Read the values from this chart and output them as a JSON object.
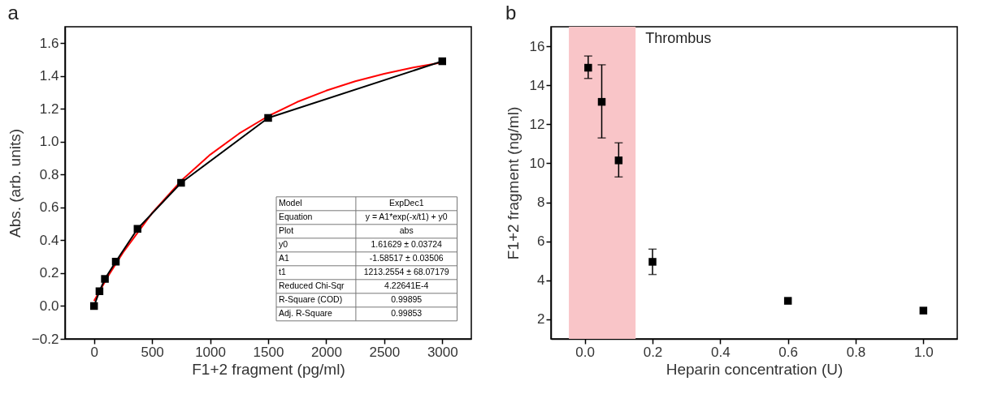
{
  "chart_data": [
    {
      "type": "line",
      "title": "a",
      "xlabel": "F1+2 fragment (pg/ml)",
      "ylabel": "Abs. (arb. units)",
      "xlim": [
        -250,
        3250
      ],
      "xticks": [
        0,
        500,
        1000,
        1500,
        2000,
        2500,
        3000
      ],
      "ylim": [
        -0.2,
        1.7
      ],
      "yticks": [
        {
          "value": -0.2,
          "label": "−0.2"
        },
        {
          "value": 0,
          "label": "0.0"
        },
        {
          "value": 0.2,
          "label": "0.2"
        },
        {
          "value": 0.4,
          "label": "0.4"
        },
        {
          "value": 0.6,
          "label": "0.6"
        },
        {
          "value": 0.8,
          "label": "0.8"
        },
        {
          "value": 1,
          "label": "1.0"
        },
        {
          "value": 1.2,
          "label": "1.2"
        },
        {
          "value": 1.4,
          "label": "1.4"
        },
        {
          "value": 1.6,
          "label": "1.6"
        }
      ],
      "marker": "square",
      "line_style": "solid",
      "series": [
        {
          "color": "#000000",
          "x": [
            0,
            46.875,
            93.75,
            187.5,
            375,
            750,
            1500,
            3000
          ],
          "values": [
            0,
            0.09,
            0.165,
            0.27,
            0.47,
            0.75,
            1.145,
            1.49
          ]
        },
        {
          "color": "#ff0000",
          "marker": "none",
          "x": [
            0,
            125,
            250,
            500,
            750,
            1000,
            1250,
            1500,
            1750,
            2000,
            2250,
            2500,
            2750,
            3000
          ],
          "values": [
            0.031,
            0.186,
            0.326,
            0.566,
            0.762,
            0.921,
            1.05,
            1.156,
            1.242,
            1.311,
            1.368,
            1.414,
            1.452,
            1.483
          ]
        }
      ],
      "annotations": [
        "Model",
        "ExpDec1",
        "Equation",
        "y = A1*exp(-x/t1) + y0",
        "Plot",
        "abs",
        "y0",
        "1.61629 ± 0.03724",
        "A1",
        "-1.58517 ± 0.03506",
        "t1",
        "1213.2554 ± 68.07179",
        "Reduced Chi-Sqr",
        "4.22641E-4",
        "R-Square (COD)",
        "0.99895",
        "Adj. R-Square",
        "0.99853"
      ]
    },
    {
      "type": "scatter",
      "title": "b",
      "xlabel": "Heparin concentration (U)",
      "ylabel": "F1+2 fragment (ng/ml)",
      "xlim": [
        -0.1,
        1.1
      ],
      "xticks": [
        {
          "value": 0,
          "label": "0.0"
        },
        {
          "value": 0.2,
          "label": "0.2"
        },
        {
          "value": 0.4,
          "label": "0.4"
        },
        {
          "value": 0.6,
          "label": "0.6"
        },
        {
          "value": 0.8,
          "label": "0.8"
        },
        {
          "value": 1,
          "label": "1.0"
        }
      ],
      "ylim": [
        1,
        17
      ],
      "yticks": [
        2,
        4,
        6,
        8,
        10,
        12,
        14,
        16
      ],
      "marker": "square",
      "bands": [
        {
          "axis": "x",
          "from": -0.047,
          "to": 0.15,
          "label": "Thrombus",
          "color": "#f9c5c8"
        }
      ],
      "series": [
        {
          "color": "#000000",
          "x": [
            0.01,
            0.05,
            0.1,
            0.2,
            0.6,
            1.0
          ],
          "values": [
            14.9,
            13.15,
            10.15,
            4.95,
            2.95,
            2.45
          ],
          "errors": [
            [
              14.35,
              15.5
            ],
            [
              11.3,
              15.05
            ],
            [
              9.3,
              11.05
            ],
            [
              4.3,
              5.6
            ],
            null,
            null
          ]
        }
      ]
    }
  ]
}
